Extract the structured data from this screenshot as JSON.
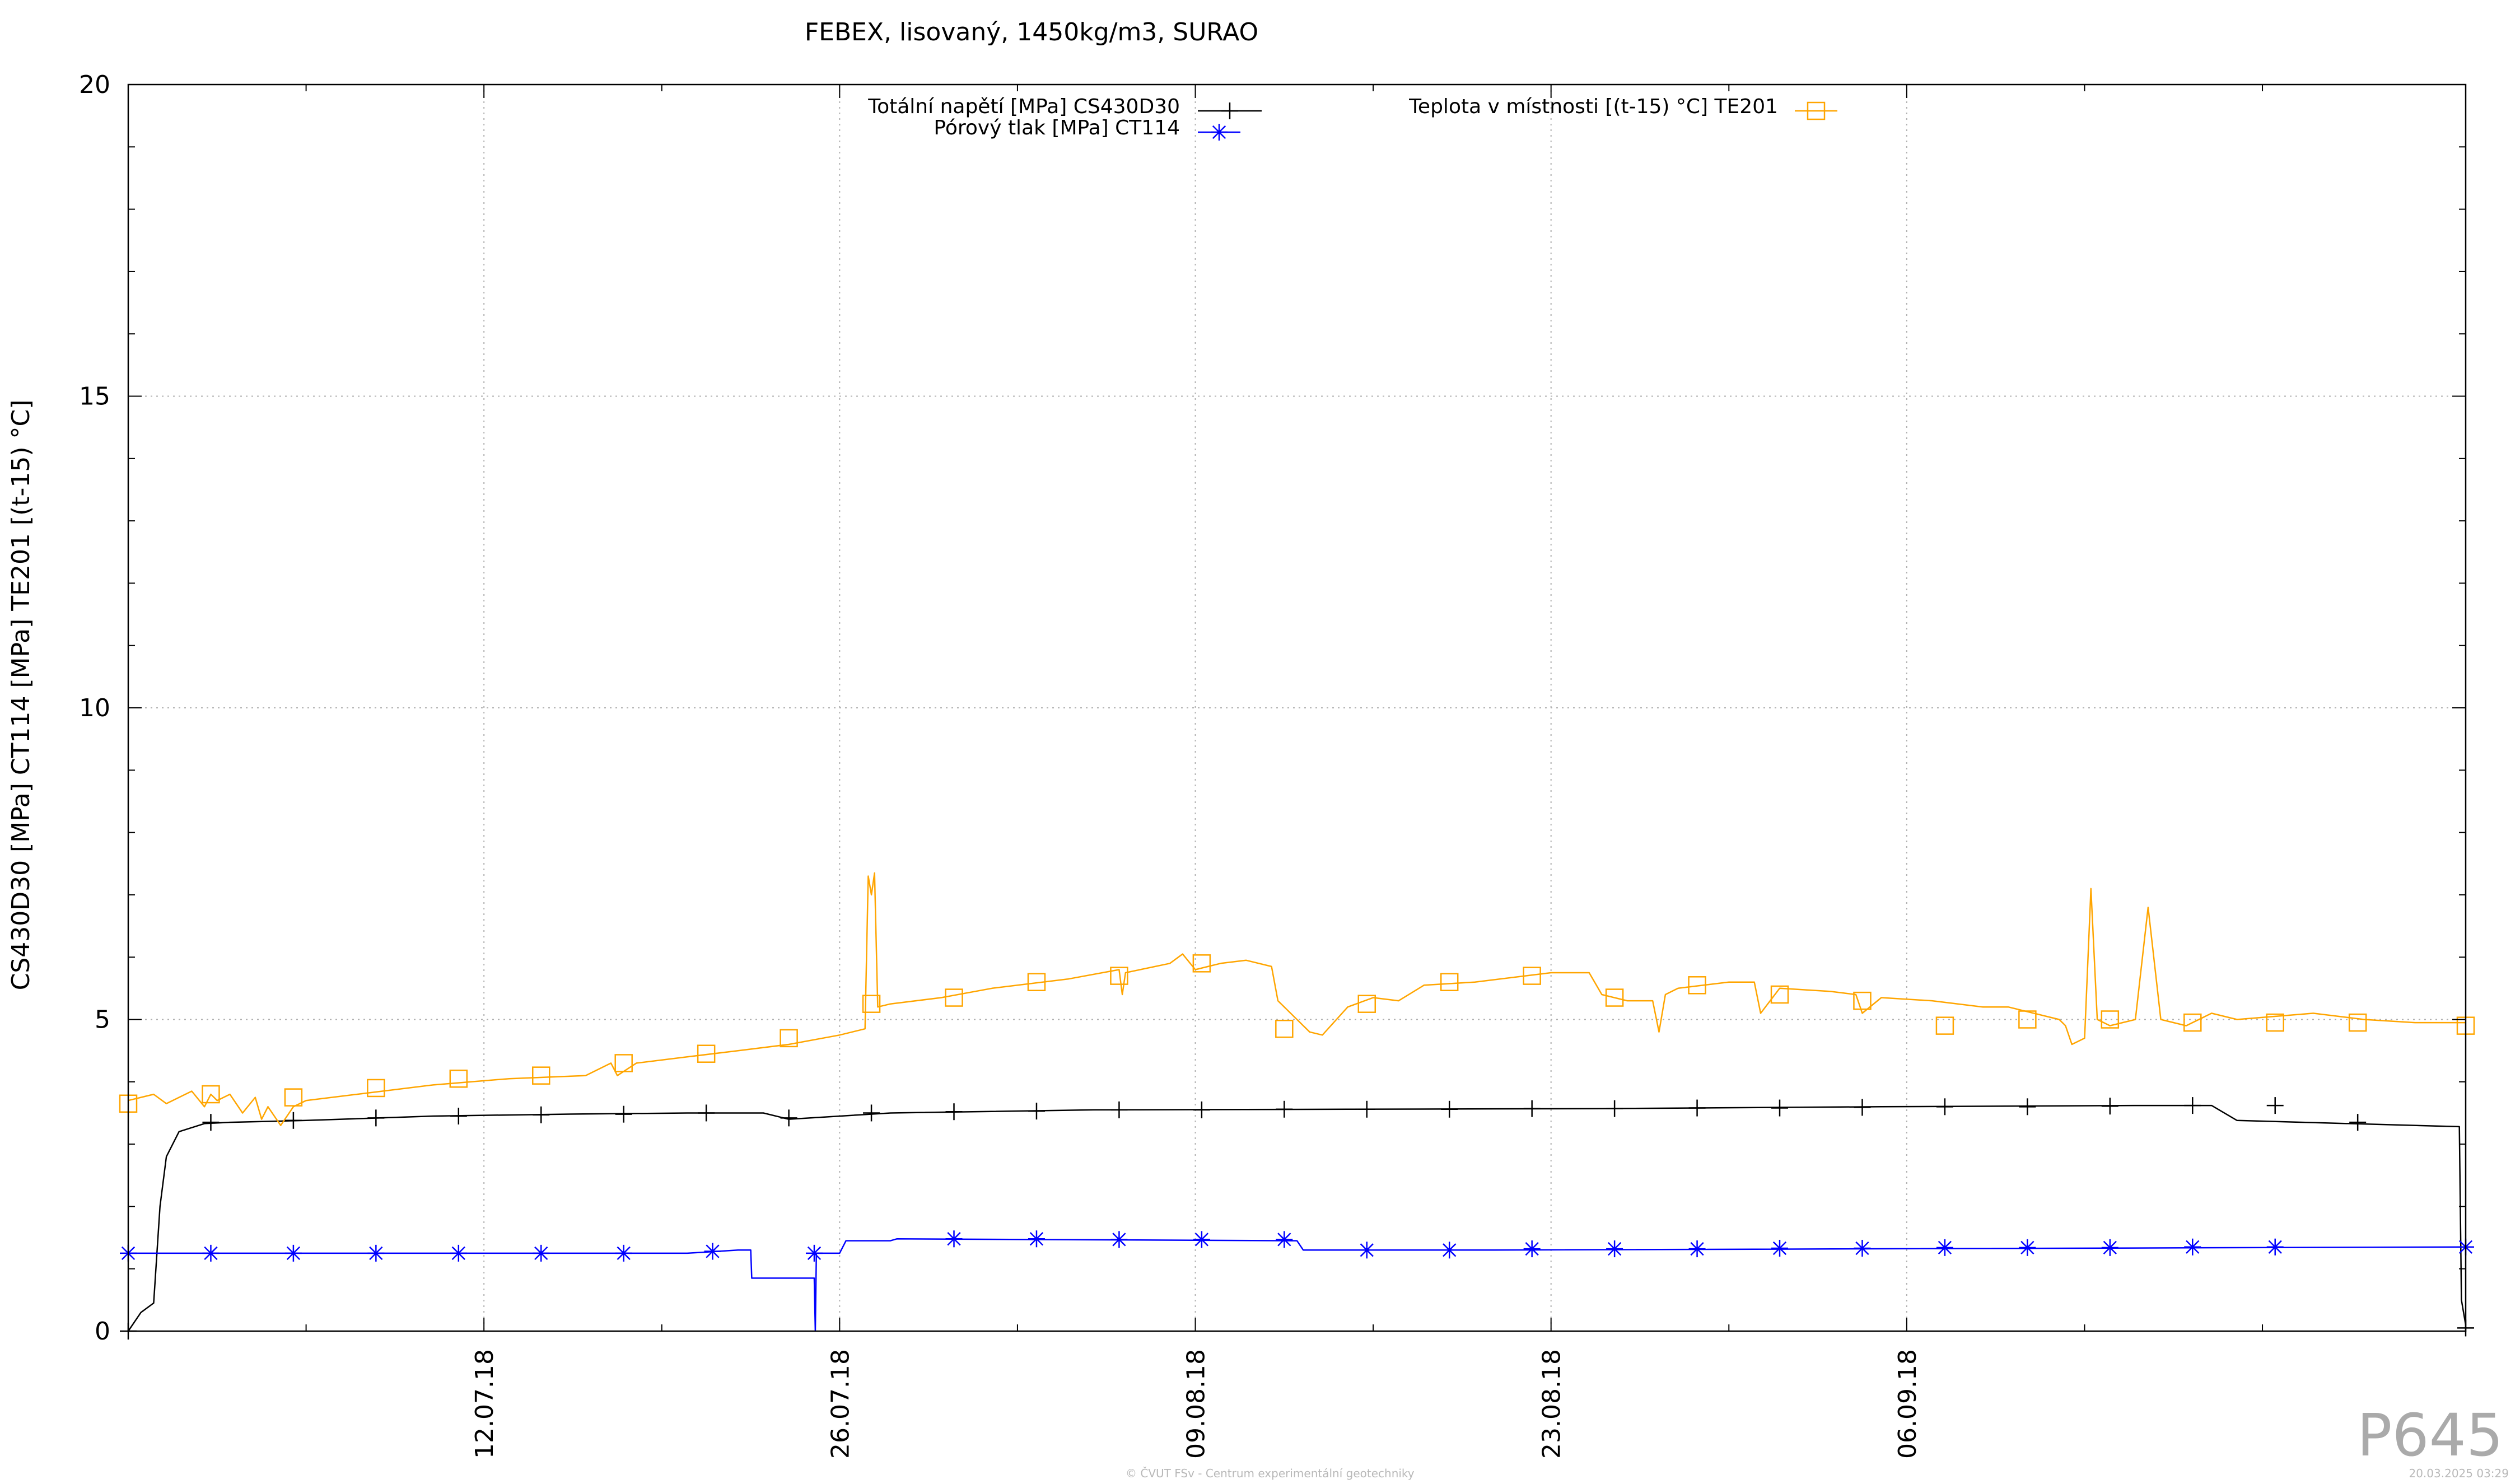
{
  "chart_data": {
    "type": "line",
    "title": "FEBEX, lisovaný, 1450kg/m3, SURAO",
    "ylabel": "CS430D30 [MPa] CT114 [MPa] TE201 [(t-15) °C]",
    "xlabel": "",
    "ylim": [
      0,
      20
    ],
    "yticks": [
      0,
      5,
      10,
      15,
      20
    ],
    "xlim": [
      "2018-06-28",
      "2018-09-28"
    ],
    "xticks": [
      {
        "date": "2018-07-12",
        "label": "12.07.18"
      },
      {
        "date": "2018-07-26",
        "label": "26.07.18"
      },
      {
        "date": "2018-08-09",
        "label": "09.08.18"
      },
      {
        "date": "2018-08-23",
        "label": "23.08.18"
      },
      {
        "date": "2018-09-06",
        "label": "06.09.18"
      }
    ],
    "minor_ticks": [
      "2018-07-05",
      "2018-07-19",
      "2018-08-02",
      "2018-08-16",
      "2018-08-30",
      "2018-09-13",
      "2018-09-20"
    ],
    "grid": true,
    "legend_position": "top",
    "series": [
      {
        "name": "Totální napětí [MPa] CS430D30",
        "color": "#000000",
        "marker": "plus",
        "x": [
          "2018-06-28",
          "2018-06-28 12:00",
          "2018-06-29",
          "2018-06-29 06:00",
          "2018-06-29 12:00",
          "2018-06-30",
          "2018-07-01",
          "2018-07-02",
          "2018-07-05",
          "2018-07-10",
          "2018-07-15",
          "2018-07-20",
          "2018-07-23",
          "2018-07-24",
          "2018-07-28",
          "2018-08-05",
          "2018-08-15",
          "2018-08-25",
          "2018-09-05",
          "2018-09-15",
          "2018-09-18",
          "2018-09-19",
          "2018-09-27 18:00",
          "2018-09-27 20:00",
          "2018-09-28"
        ],
        "values": [
          0.0,
          0.3,
          0.45,
          2.0,
          2.8,
          3.2,
          3.33,
          3.35,
          3.38,
          3.45,
          3.48,
          3.5,
          3.5,
          3.4,
          3.5,
          3.55,
          3.56,
          3.57,
          3.6,
          3.62,
          3.62,
          3.38,
          3.28,
          0.5,
          0.1
        ],
        "marker_x": [
          "2018-06-28",
          "2018-07-01 06:00",
          "2018-07-04 12:00",
          "2018-07-07 18:00",
          "2018-07-11",
          "2018-07-14 06:00",
          "2018-07-17 12:00",
          "2018-07-20 18:00",
          "2018-07-24",
          "2018-07-27 06:00",
          "2018-07-30 12:00",
          "2018-08-02 18:00",
          "2018-08-06",
          "2018-08-09 06:00",
          "2018-08-12 12:00",
          "2018-08-15 18:00",
          "2018-08-19",
          "2018-08-22 06:00",
          "2018-08-25 12:00",
          "2018-08-28 18:00",
          "2018-09-01",
          "2018-09-04 06:00",
          "2018-09-07 12:00",
          "2018-09-10 18:00",
          "2018-09-14",
          "2018-09-17 06:00",
          "2018-09-20 12:00",
          "2018-09-23 18:00",
          "2018-09-28"
        ],
        "marker_values": [
          0.0,
          3.35,
          3.38,
          3.42,
          3.45,
          3.47,
          3.48,
          3.5,
          3.42,
          3.5,
          3.52,
          3.53,
          3.55,
          3.55,
          3.56,
          3.56,
          3.56,
          3.57,
          3.57,
          3.58,
          3.58,
          3.59,
          3.6,
          3.6,
          3.61,
          3.62,
          3.62,
          3.35,
          0.05
        ]
      },
      {
        "name": "Pórový tlak [MPa] CT114",
        "color": "#0000ff",
        "marker": "star",
        "x": [
          "2018-06-28",
          "2018-07-20",
          "2018-07-22",
          "2018-07-22 12:00",
          "2018-07-22 13:00",
          "2018-07-25",
          "2018-07-25 01:00",
          "2018-07-25 02:00",
          "2018-07-26",
          "2018-07-26 06:00",
          "2018-07-28",
          "2018-07-28 06:00",
          "2018-08-13",
          "2018-08-13 06:00",
          "2018-08-20",
          "2018-09-28"
        ],
        "values": [
          1.25,
          1.25,
          1.3,
          1.3,
          0.85,
          0.85,
          0.0,
          1.25,
          1.25,
          1.45,
          1.45,
          1.48,
          1.45,
          1.3,
          1.3,
          1.35
        ],
        "marker_x": [
          "2018-06-28",
          "2018-07-01 06:00",
          "2018-07-04 12:00",
          "2018-07-07 18:00",
          "2018-07-11",
          "2018-07-14 06:00",
          "2018-07-17 12:00",
          "2018-07-21",
          "2018-07-25",
          "2018-07-30 12:00",
          "2018-08-02 18:00",
          "2018-08-06",
          "2018-08-09 06:00",
          "2018-08-12 12:00",
          "2018-08-15 18:00",
          "2018-08-19",
          "2018-08-22 06:00",
          "2018-08-25 12:00",
          "2018-08-28 18:00",
          "2018-09-01",
          "2018-09-04 06:00",
          "2018-09-07 12:00",
          "2018-09-10 18:00",
          "2018-09-14",
          "2018-09-17 06:00",
          "2018-09-20 12:00",
          "2018-09-28"
        ],
        "marker_values": [
          1.25,
          1.25,
          1.25,
          1.25,
          1.25,
          1.25,
          1.25,
          1.28,
          1.25,
          1.48,
          1.48,
          1.47,
          1.47,
          1.47,
          1.3,
          1.3,
          1.32,
          1.32,
          1.32,
          1.33,
          1.33,
          1.34,
          1.34,
          1.34,
          1.35,
          1.35,
          1.35
        ]
      },
      {
        "name": "Teplota v místnosti [(t-15) °C] TE201",
        "color": "#ffa500",
        "marker": "square",
        "x": [
          "2018-06-28",
          "2018-06-29",
          "2018-06-29 12:00",
          "2018-06-30",
          "2018-06-30 12:00",
          "2018-07-01",
          "2018-07-01 06:00",
          "2018-07-01 12:00",
          "2018-07-02",
          "2018-07-02 12:00",
          "2018-07-03",
          "2018-07-03 06:00",
          "2018-07-03 12:00",
          "2018-07-04",
          "2018-07-04 12:00",
          "2018-07-05",
          "2018-07-07",
          "2018-07-10",
          "2018-07-13",
          "2018-07-16",
          "2018-07-17",
          "2018-07-17 06:00",
          "2018-07-18",
          "2018-07-20",
          "2018-07-22",
          "2018-07-24",
          "2018-07-26",
          "2018-07-27",
          "2018-07-27 03:00",
          "2018-07-27 06:00",
          "2018-07-27 09:00",
          "2018-07-27 12:00",
          "2018-07-28",
          "2018-07-30",
          "2018-08-01",
          "2018-08-04",
          "2018-08-06",
          "2018-08-06 03:00",
          "2018-08-06 06:00",
          "2018-08-08",
          "2018-08-08 12:00",
          "2018-08-09",
          "2018-08-10",
          "2018-08-11",
          "2018-08-12",
          "2018-08-12 06:00",
          "2018-08-13",
          "2018-08-13 12:00",
          "2018-08-14",
          "2018-08-15",
          "2018-08-16",
          "2018-08-17",
          "2018-08-18",
          "2018-08-20",
          "2018-08-23",
          "2018-08-24 12:00",
          "2018-08-25",
          "2018-08-26",
          "2018-08-27",
          "2018-08-27 06:00",
          "2018-08-27 12:00",
          "2018-08-28",
          "2018-08-29",
          "2018-08-30",
          "2018-08-31",
          "2018-08-31 06:00",
          "2018-09-01",
          "2018-09-03",
          "2018-09-04",
          "2018-09-04 06:00",
          "2018-09-05",
          "2018-09-07",
          "2018-09-09",
          "2018-09-10",
          "2018-09-12",
          "2018-09-12 06:00",
          "2018-09-12 12:00",
          "2018-09-13",
          "2018-09-13 06:00",
          "2018-09-13 12:00",
          "2018-09-14",
          "2018-09-15",
          "2018-09-15 12:00",
          "2018-09-16",
          "2018-09-17",
          "2018-09-18",
          "2018-09-19",
          "2018-09-22",
          "2018-09-24",
          "2018-09-26",
          "2018-09-28"
        ],
        "values": [
          3.7,
          3.8,
          3.65,
          3.75,
          3.85,
          3.6,
          3.8,
          3.7,
          3.8,
          3.5,
          3.75,
          3.4,
          3.6,
          3.3,
          3.6,
          3.7,
          3.8,
          3.95,
          4.05,
          4.1,
          4.3,
          4.1,
          4.3,
          4.4,
          4.5,
          4.6,
          4.75,
          4.85,
          7.3,
          7.0,
          7.35,
          5.2,
          5.25,
          5.35,
          5.5,
          5.65,
          5.8,
          5.4,
          5.75,
          5.9,
          6.05,
          5.8,
          5.9,
          5.95,
          5.85,
          5.3,
          5.0,
          4.8,
          4.75,
          5.2,
          5.35,
          5.3,
          5.55,
          5.6,
          5.75,
          5.75,
          5.4,
          5.3,
          5.3,
          4.8,
          5.4,
          5.5,
          5.55,
          5.6,
          5.6,
          5.1,
          5.5,
          5.45,
          5.4,
          5.1,
          5.35,
          5.3,
          5.2,
          5.2,
          5.0,
          4.9,
          4.6,
          4.7,
          7.1,
          5.0,
          4.9,
          5.0,
          6.8,
          5.0,
          4.9,
          5.1,
          5.0,
          5.1,
          5.0,
          4.95,
          4.95
        ],
        "marker_x": [
          "2018-06-28",
          "2018-07-01 06:00",
          "2018-07-04 12:00",
          "2018-07-07 18:00",
          "2018-07-11",
          "2018-07-14 06:00",
          "2018-07-17 12:00",
          "2018-07-20 18:00",
          "2018-07-24",
          "2018-07-27 06:00",
          "2018-07-30 12:00",
          "2018-08-02 18:00",
          "2018-08-06",
          "2018-08-09 06:00",
          "2018-08-12 12:00",
          "2018-08-15 18:00",
          "2018-08-19",
          "2018-08-22 06:00",
          "2018-08-25 12:00",
          "2018-08-28 18:00",
          "2018-09-01",
          "2018-09-04 06:00",
          "2018-09-07 12:00",
          "2018-09-10 18:00",
          "2018-09-14",
          "2018-09-17 06:00",
          "2018-09-20 12:00",
          "2018-09-23 18:00",
          "2018-09-28"
        ],
        "marker_values": [
          3.65,
          3.8,
          3.75,
          3.9,
          4.05,
          4.1,
          4.3,
          4.45,
          4.7,
          5.25,
          5.35,
          5.6,
          5.7,
          5.9,
          4.85,
          5.25,
          5.6,
          5.7,
          5.35,
          5.55,
          5.4,
          5.3,
          4.9,
          5.0,
          5.0,
          4.95,
          4.95,
          4.95,
          4.9
        ]
      }
    ]
  },
  "watermark": "P645",
  "footer": {
    "center": "© ČVUT FSv - Centrum experimentální geotechniky",
    "right": "20.03.2025 03:29"
  }
}
